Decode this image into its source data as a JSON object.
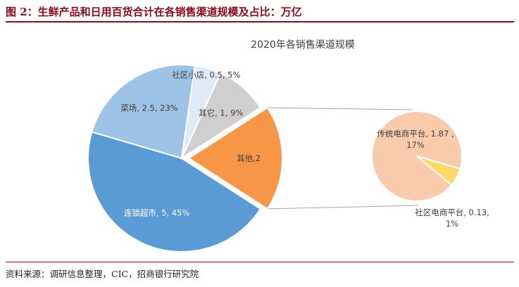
{
  "header": {
    "figure_title": "图 2：生鲜产品和日用百货合计在各销售渠道规模及占比：万亿"
  },
  "footer": {
    "source": "资料来源：调研信息整理，CIC，招商银行研究院"
  },
  "chart_data": {
    "type": "pie",
    "subtype": "pie-of-pie",
    "title": "2020年各销售渠道规模",
    "main": {
      "slices": [
        {
          "label": "连锁超市, 5, 45%",
          "value": 5,
          "percent": 45,
          "color": "#5b9bd5",
          "text_color": "light"
        },
        {
          "label": "菜场, 2.5, 23%",
          "value": 2.5,
          "percent": 23,
          "color": "#9dc3e6",
          "text_color": "dark"
        },
        {
          "label": "社区小店, 0.5, 5%",
          "value": 0.5,
          "percent": 5,
          "color": "#deebf7",
          "text_color": "dark"
        },
        {
          "label": "其它, 1, 9%",
          "value": 1,
          "percent": 9,
          "color": "#d0cece",
          "text_color": "dark"
        },
        {
          "label": "其他,2",
          "value": 2,
          "percent": 18,
          "color": "#f79646",
          "text_color": "dark",
          "exploded_to_secondary": true
        }
      ]
    },
    "secondary": {
      "slices": [
        {
          "label": "传统电商平台, 1.87, 17%",
          "value": 1.87,
          "percent": 17,
          "color": "#f8cbad",
          "text_color": "dark"
        },
        {
          "label": "社区电商平台, 0.13, 1%",
          "value": 0.13,
          "percent": 1,
          "color": "#ffd966",
          "text_color": "dark"
        }
      ]
    },
    "legend": "none"
  }
}
